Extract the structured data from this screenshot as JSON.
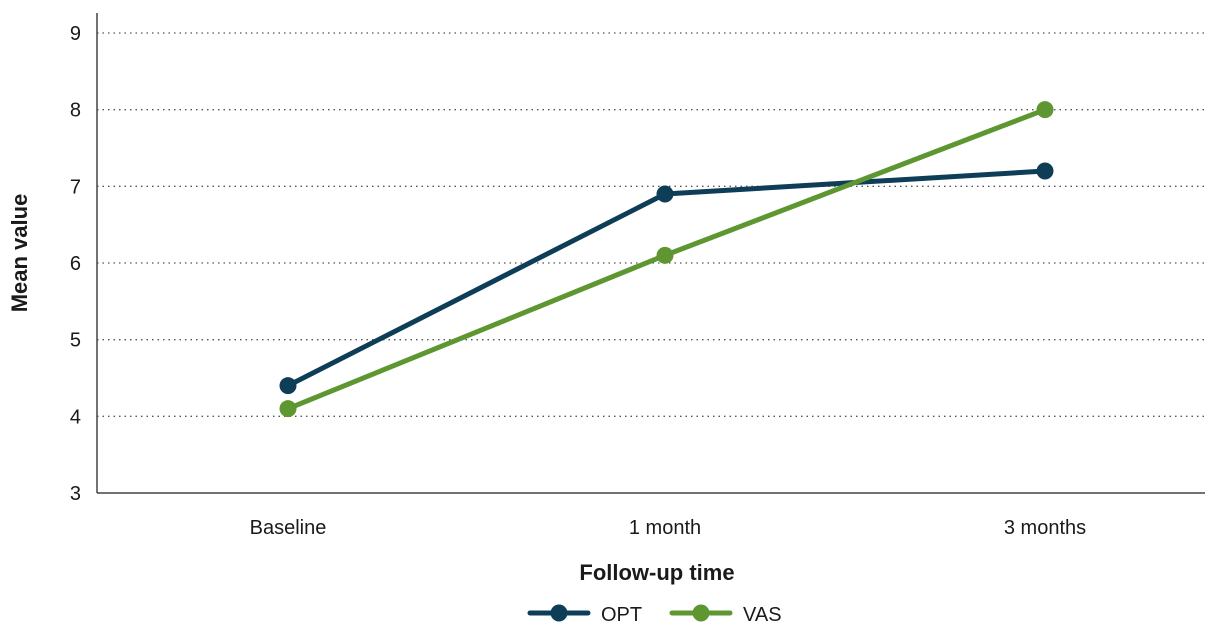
{
  "chart_data": {
    "type": "line",
    "categories": [
      "Baseline",
      "1 month",
      "3 months"
    ],
    "series": [
      {
        "name": "OPT",
        "values": [
          4.4,
          6.9,
          7.2
        ],
        "color": "#0e3d57"
      },
      {
        "name": "VAS",
        "values": [
          4.1,
          6.1,
          8.0
        ],
        "color": "#5e9632"
      }
    ],
    "xlabel": "Follow-up time",
    "ylabel": "Mean value",
    "ylim": [
      3,
      9
    ],
    "yticks": [
      "3",
      "4",
      "5",
      "6",
      "7",
      "8",
      "9"
    ],
    "grid": true,
    "legend_position": "bottom-center"
  }
}
